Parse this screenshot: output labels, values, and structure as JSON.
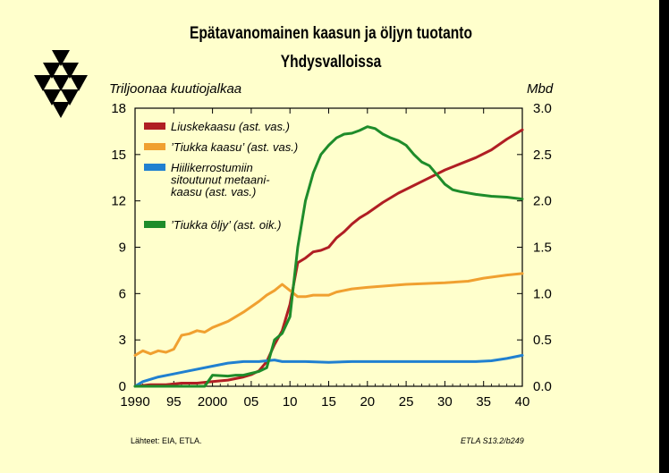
{
  "title_line1": "Epätavanomainen kaasun ja öljyn tuotanto",
  "title_line2": "Yhdysvalloissa",
  "source_text": "Lähteet:   EIA, ETLA.",
  "ref_text": "ETLA S13.2/b249",
  "colors": {
    "background": "#FFFFCC",
    "shale_gas": "#B01E23",
    "tight_gas": "#F0A030",
    "coalbed_methane": "#2080D0",
    "tight_oil": "#1E8C2A"
  },
  "logo": "etla-logo",
  "chart_data": {
    "type": "line",
    "ylabel_left": "Triljoonaa kuutiojalkaa",
    "ylabel_right": "Mbd",
    "x_ticks": [
      "1990",
      "95",
      "2000",
      "05",
      "10",
      "15",
      "20",
      "25",
      "30",
      "35",
      "40"
    ],
    "y_ticks_left": [
      "0",
      "3",
      "6",
      "9",
      "12",
      "15",
      "18"
    ],
    "y_ticks_right": [
      "0.0",
      "0.5",
      "1.0",
      "1.5",
      "2.0",
      "2.5",
      "3.0"
    ],
    "xlim": [
      1990,
      2040
    ],
    "ylim_left": [
      0,
      18
    ],
    "ylim_right": [
      0,
      3.0
    ],
    "grid": false,
    "legend_position": "top-left",
    "series": [
      {
        "name": "Liuskekaasu (ast. vas.)",
        "axis": "left",
        "color": "#B01E23",
        "points": [
          [
            1990,
            0.0
          ],
          [
            1992,
            0.1
          ],
          [
            1994,
            0.1
          ],
          [
            1996,
            0.2
          ],
          [
            1998,
            0.2
          ],
          [
            2000,
            0.3
          ],
          [
            2002,
            0.4
          ],
          [
            2004,
            0.6
          ],
          [
            2005,
            0.75
          ],
          [
            2006,
            1.0
          ],
          [
            2007,
            1.6
          ],
          [
            2008,
            2.7
          ],
          [
            2009,
            3.6
          ],
          [
            2010,
            5.3
          ],
          [
            2011,
            8.0
          ],
          [
            2012,
            8.3
          ],
          [
            2013,
            8.7
          ],
          [
            2014,
            8.8
          ],
          [
            2015,
            9.0
          ],
          [
            2016,
            9.6
          ],
          [
            2017,
            10.0
          ],
          [
            2018,
            10.5
          ],
          [
            2019,
            10.9
          ],
          [
            2020,
            11.2
          ],
          [
            2022,
            11.9
          ],
          [
            2024,
            12.5
          ],
          [
            2026,
            13.0
          ],
          [
            2028,
            13.5
          ],
          [
            2030,
            14.0
          ],
          [
            2032,
            14.4
          ],
          [
            2034,
            14.8
          ],
          [
            2036,
            15.3
          ],
          [
            2038,
            16.0
          ],
          [
            2040,
            16.6
          ]
        ]
      },
      {
        "name": "’Tiukka kaasu’ (ast. vas.)",
        "axis": "left",
        "color": "#F0A030",
        "points": [
          [
            1990,
            2.0
          ],
          [
            1991,
            2.3
          ],
          [
            1992,
            2.1
          ],
          [
            1993,
            2.3
          ],
          [
            1994,
            2.2
          ],
          [
            1995,
            2.4
          ],
          [
            1996,
            3.3
          ],
          [
            1997,
            3.4
          ],
          [
            1998,
            3.6
          ],
          [
            1999,
            3.5
          ],
          [
            2000,
            3.8
          ],
          [
            2002,
            4.2
          ],
          [
            2004,
            4.8
          ],
          [
            2006,
            5.5
          ],
          [
            2007,
            5.9
          ],
          [
            2008,
            6.2
          ],
          [
            2009,
            6.6
          ],
          [
            2010,
            6.2
          ],
          [
            2011,
            5.8
          ],
          [
            2012,
            5.8
          ],
          [
            2013,
            5.9
          ],
          [
            2015,
            5.9
          ],
          [
            2016,
            6.1
          ],
          [
            2018,
            6.3
          ],
          [
            2020,
            6.4
          ],
          [
            2025,
            6.6
          ],
          [
            2030,
            6.7
          ],
          [
            2033,
            6.8
          ],
          [
            2035,
            7.0
          ],
          [
            2038,
            7.2
          ],
          [
            2040,
            7.3
          ]
        ]
      },
      {
        "name": "Hiilikerrostumiin sitoutunut metaani-kaasu (ast. vas.)",
        "axis": "left",
        "color": "#2080D0",
        "points": [
          [
            1990,
            0.0
          ],
          [
            1991,
            0.3
          ],
          [
            1993,
            0.6
          ],
          [
            1995,
            0.8
          ],
          [
            1997,
            1.0
          ],
          [
            2000,
            1.3
          ],
          [
            2002,
            1.5
          ],
          [
            2004,
            1.6
          ],
          [
            2006,
            1.6
          ],
          [
            2008,
            1.7
          ],
          [
            2009,
            1.6
          ],
          [
            2012,
            1.6
          ],
          [
            2015,
            1.55
          ],
          [
            2018,
            1.6
          ],
          [
            2020,
            1.6
          ],
          [
            2025,
            1.6
          ],
          [
            2030,
            1.6
          ],
          [
            2034,
            1.6
          ],
          [
            2036,
            1.65
          ],
          [
            2038,
            1.8
          ],
          [
            2040,
            2.0
          ]
        ]
      },
      {
        "name": "’Tiukka öljy’ (ast. oik.)",
        "axis": "right",
        "color": "#1E8C2A",
        "points": [
          [
            1990,
            0.0
          ],
          [
            1999,
            0.0
          ],
          [
            2000,
            0.12
          ],
          [
            2002,
            0.11
          ],
          [
            2003,
            0.12
          ],
          [
            2004,
            0.12
          ],
          [
            2005,
            0.14
          ],
          [
            2006,
            0.16
          ],
          [
            2007,
            0.2
          ],
          [
            2008,
            0.5
          ],
          [
            2009,
            0.57
          ],
          [
            2010,
            0.75
          ],
          [
            2011,
            1.5
          ],
          [
            2012,
            2.0
          ],
          [
            2013,
            2.3
          ],
          [
            2014,
            2.5
          ],
          [
            2015,
            2.6
          ],
          [
            2016,
            2.68
          ],
          [
            2017,
            2.72
          ],
          [
            2018,
            2.73
          ],
          [
            2019,
            2.76
          ],
          [
            2020,
            2.8
          ],
          [
            2021,
            2.78
          ],
          [
            2022,
            2.72
          ],
          [
            2023,
            2.68
          ],
          [
            2024,
            2.65
          ],
          [
            2025,
            2.6
          ],
          [
            2026,
            2.5
          ],
          [
            2027,
            2.42
          ],
          [
            2028,
            2.38
          ],
          [
            2029,
            2.28
          ],
          [
            2030,
            2.18
          ],
          [
            2031,
            2.12
          ],
          [
            2032,
            2.1
          ],
          [
            2034,
            2.07
          ],
          [
            2036,
            2.05
          ],
          [
            2038,
            2.04
          ],
          [
            2040,
            2.02
          ]
        ]
      }
    ],
    "legend": [
      {
        "lines": [
          "Liuskekaasu (ast. vas.)"
        ],
        "series_index": 0
      },
      {
        "lines": [
          "’Tiukka kaasu’ (ast. vas.)"
        ],
        "series_index": 1
      },
      {
        "lines": [
          "Hiilikerrostumiin",
          "sitoutunut metaani-",
          "kaasu (ast. vas.)"
        ],
        "series_index": 2
      },
      {
        "lines": [
          "’Tiukka öljy’ (ast. oik.)"
        ],
        "series_index": 3
      }
    ]
  }
}
